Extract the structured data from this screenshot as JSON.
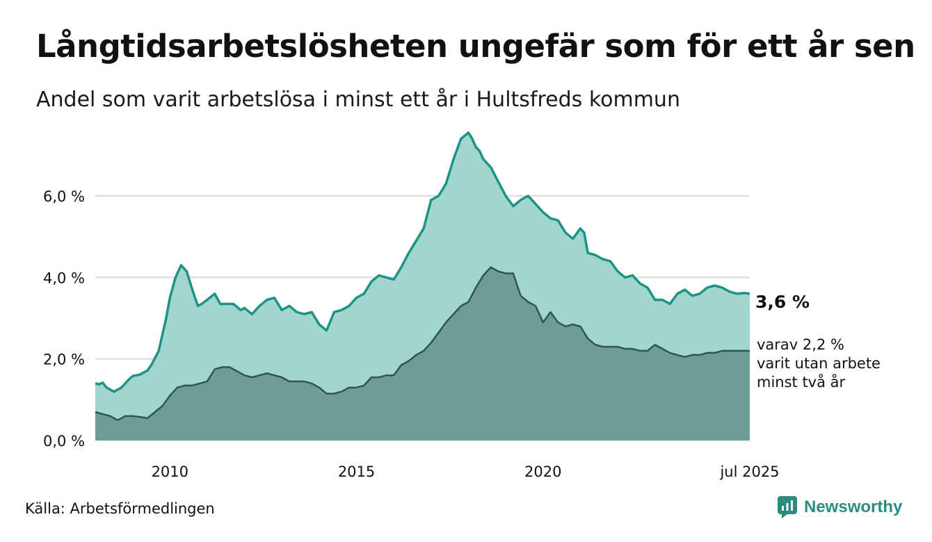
{
  "title": "Långtidsarbetslösheten ungefär som för ett år sen",
  "subtitle": "Andel som varit arbetslösa i minst ett år i Hultsfreds kommun",
  "source": "Källa: Arbetsförmedlingen",
  "brand": "Newsworthy",
  "colors": {
    "total_line": "#1a9484",
    "total_fill": "#a2d5d0",
    "sub_line": "#2e5650",
    "sub_fill": "#709c96",
    "grid": "#d9d9d9",
    "brand": "#2a8c80"
  },
  "chart_data": {
    "type": "area",
    "xlim": [
      2008.0,
      2025.54
    ],
    "ylim": [
      0,
      7.6
    ],
    "grid": "horizontal",
    "y_ticks": [
      {
        "value": 0,
        "label": "0,0 %"
      },
      {
        "value": 2,
        "label": "2,0 %"
      },
      {
        "value": 4,
        "label": "4,0 %"
      },
      {
        "value": 6,
        "label": "6,0 %"
      }
    ],
    "x_ticks": [
      {
        "value": 2010,
        "label": "2010"
      },
      {
        "value": 2015,
        "label": "2015"
      },
      {
        "value": 2020,
        "label": "2020"
      },
      {
        "value": 2025.54,
        "label": "jul 2025"
      }
    ],
    "annotations": {
      "total_value": "3,6 %",
      "sub_lines": [
        "varav 2,2 %",
        "varit utan arbete",
        "minst två år"
      ]
    },
    "series": [
      {
        "key": "total",
        "x": [
          2008.0,
          2008.1,
          2008.2,
          2008.3,
          2008.5,
          2008.7,
          2008.9,
          2009.0,
          2009.2,
          2009.4,
          2009.5,
          2009.7,
          2009.9,
          2010.0,
          2010.15,
          2010.3,
          2010.45,
          2010.6,
          2010.75,
          2010.85,
          2011.0,
          2011.2,
          2011.35,
          2011.5,
          2011.7,
          2011.9,
          2012.0,
          2012.2,
          2012.4,
          2012.6,
          2012.8,
          2013.0,
          2013.2,
          2013.4,
          2013.6,
          2013.8,
          2014.0,
          2014.2,
          2014.4,
          2014.6,
          2014.8,
          2015.0,
          2015.2,
          2015.4,
          2015.6,
          2015.8,
          2016.0,
          2016.2,
          2016.4,
          2016.6,
          2016.8,
          2017.0,
          2017.2,
          2017.4,
          2017.6,
          2017.8,
          2018.0,
          2018.1,
          2018.2,
          2018.3,
          2018.4,
          2018.6,
          2018.8,
          2019.0,
          2019.2,
          2019.4,
          2019.6,
          2019.8,
          2020.0,
          2020.2,
          2020.4,
          2020.6,
          2020.8,
          2021.0,
          2021.1,
          2021.2,
          2021.4,
          2021.6,
          2021.8,
          2022.0,
          2022.2,
          2022.4,
          2022.6,
          2022.8,
          2023.0,
          2023.2,
          2023.4,
          2023.6,
          2023.8,
          2024.0,
          2024.2,
          2024.4,
          2024.6,
          2024.8,
          2025.0,
          2025.2,
          2025.4,
          2025.54
        ],
        "y": [
          1.4,
          1.38,
          1.42,
          1.3,
          1.2,
          1.3,
          1.5,
          1.58,
          1.62,
          1.72,
          1.85,
          2.2,
          3.0,
          3.5,
          4.0,
          4.3,
          4.15,
          3.7,
          3.3,
          3.35,
          3.45,
          3.6,
          3.35,
          3.35,
          3.35,
          3.2,
          3.25,
          3.1,
          3.3,
          3.45,
          3.5,
          3.2,
          3.3,
          3.15,
          3.1,
          3.15,
          2.85,
          2.7,
          3.15,
          3.2,
          3.3,
          3.5,
          3.6,
          3.9,
          4.05,
          4.0,
          3.95,
          4.25,
          4.6,
          4.9,
          5.2,
          5.9,
          6.0,
          6.3,
          6.9,
          7.4,
          7.55,
          7.4,
          7.2,
          7.1,
          6.9,
          6.7,
          6.35,
          6.0,
          5.75,
          5.9,
          6.0,
          5.8,
          5.6,
          5.45,
          5.4,
          5.1,
          4.95,
          5.2,
          5.1,
          4.6,
          4.55,
          4.45,
          4.4,
          4.15,
          4.0,
          4.05,
          3.85,
          3.75,
          3.45,
          3.45,
          3.35,
          3.6,
          3.7,
          3.55,
          3.6,
          3.75,
          3.8,
          3.75,
          3.65,
          3.6,
          3.62,
          3.6
        ]
      },
      {
        "key": "sub",
        "x": [
          2008.0,
          2008.2,
          2008.4,
          2008.6,
          2008.8,
          2009.0,
          2009.2,
          2009.4,
          2009.6,
          2009.8,
          2010.0,
          2010.2,
          2010.4,
          2010.6,
          2010.8,
          2011.0,
          2011.2,
          2011.4,
          2011.6,
          2011.8,
          2012.0,
          2012.2,
          2012.4,
          2012.6,
          2012.8,
          2013.0,
          2013.2,
          2013.4,
          2013.6,
          2013.8,
          2014.0,
          2014.2,
          2014.4,
          2014.6,
          2014.8,
          2015.0,
          2015.2,
          2015.4,
          2015.6,
          2015.8,
          2016.0,
          2016.2,
          2016.4,
          2016.6,
          2016.8,
          2017.0,
          2017.2,
          2017.4,
          2017.6,
          2017.8,
          2018.0,
          2018.2,
          2018.4,
          2018.6,
          2018.8,
          2019.0,
          2019.2,
          2019.4,
          2019.6,
          2019.8,
          2020.0,
          2020.2,
          2020.4,
          2020.6,
          2020.8,
          2021.0,
          2021.2,
          2021.4,
          2021.6,
          2021.8,
          2022.0,
          2022.2,
          2022.4,
          2022.6,
          2022.8,
          2023.0,
          2023.2,
          2023.4,
          2023.6,
          2023.8,
          2024.0,
          2024.2,
          2024.4,
          2024.6,
          2024.8,
          2025.0,
          2025.2,
          2025.4,
          2025.54
        ],
        "y": [
          0.7,
          0.65,
          0.6,
          0.5,
          0.6,
          0.6,
          0.58,
          0.55,
          0.7,
          0.85,
          1.1,
          1.3,
          1.35,
          1.35,
          1.4,
          1.45,
          1.75,
          1.8,
          1.8,
          1.7,
          1.6,
          1.55,
          1.6,
          1.65,
          1.6,
          1.55,
          1.45,
          1.45,
          1.45,
          1.4,
          1.3,
          1.15,
          1.15,
          1.2,
          1.3,
          1.3,
          1.35,
          1.55,
          1.55,
          1.6,
          1.6,
          1.85,
          1.95,
          2.1,
          2.2,
          2.4,
          2.65,
          2.9,
          3.1,
          3.3,
          3.4,
          3.75,
          4.05,
          4.25,
          4.15,
          4.1,
          4.1,
          3.55,
          3.4,
          3.3,
          2.9,
          3.15,
          2.9,
          2.8,
          2.85,
          2.8,
          2.5,
          2.35,
          2.3,
          2.3,
          2.3,
          2.25,
          2.25,
          2.2,
          2.2,
          2.35,
          2.25,
          2.15,
          2.1,
          2.05,
          2.1,
          2.1,
          2.15,
          2.15,
          2.2,
          2.2,
          2.2,
          2.2,
          2.2
        ]
      }
    ]
  }
}
